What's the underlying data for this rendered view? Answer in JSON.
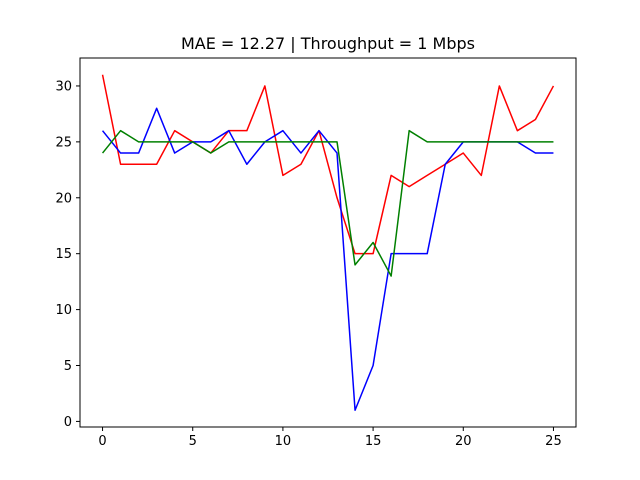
{
  "chart_data": {
    "type": "line",
    "title": "MAE = 12.27 | Throughput = 1 Mbps",
    "xlabel": "",
    "ylabel": "",
    "xlim": [
      -1.25,
      26.25
    ],
    "ylim": [
      -0.5,
      32.5
    ],
    "x_ticks": [
      0,
      5,
      10,
      15,
      20,
      25
    ],
    "y_ticks": [
      0,
      5,
      10,
      15,
      20,
      25,
      30
    ],
    "grid": false,
    "x": [
      0,
      1,
      2,
      3,
      4,
      5,
      6,
      7,
      8,
      9,
      10,
      11,
      12,
      13,
      14,
      15,
      16,
      17,
      18,
      19,
      20,
      21,
      22,
      23,
      24,
      25
    ],
    "series": [
      {
        "color": "#ff0000",
        "values": [
          31,
          23,
          23,
          23,
          26,
          25,
          24,
          26,
          26,
          30,
          22,
          23,
          26,
          20,
          15,
          15,
          22,
          21,
          22,
          23,
          24,
          22,
          30,
          26,
          27,
          30
        ]
      },
      {
        "color": "#0000ff",
        "values": [
          26,
          24,
          24,
          28,
          24,
          25,
          25,
          26,
          23,
          25,
          26,
          24,
          26,
          24,
          1,
          5,
          15,
          15,
          15,
          23,
          25,
          25,
          25,
          25,
          24,
          24
        ]
      },
      {
        "color": "#008000",
        "values": [
          24,
          26,
          25,
          25,
          25,
          25,
          24,
          25,
          25,
          25,
          25,
          25,
          25,
          25,
          14,
          16,
          13,
          26,
          25,
          25,
          25,
          25,
          25,
          25,
          25,
          25
        ]
      }
    ]
  }
}
